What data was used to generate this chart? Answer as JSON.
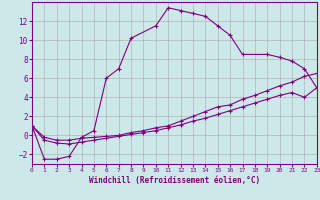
{
  "xlabel": "Windchill (Refroidissement éolien,°C)",
  "bg_color": "#cce8e8",
  "line_color": "#800080",
  "grid_color": "#aaaaaa",
  "ylim": [
    -3,
    14
  ],
  "xlim": [
    0,
    23
  ],
  "yticks": [
    -2,
    0,
    2,
    4,
    6,
    8,
    10,
    12
  ],
  "xticks": [
    0,
    1,
    2,
    3,
    4,
    5,
    6,
    7,
    8,
    9,
    10,
    11,
    12,
    13,
    14,
    15,
    16,
    17,
    18,
    19,
    20,
    21,
    22,
    23
  ],
  "line1_x": [
    0,
    1,
    2,
    3,
    4,
    5,
    6,
    7,
    8,
    10,
    11,
    12,
    13,
    14,
    15,
    16,
    17,
    19,
    20,
    21,
    22,
    23
  ],
  "line1_y": [
    1,
    -2.5,
    -2.5,
    -2.2,
    -0.2,
    0.5,
    6.0,
    7.0,
    10.2,
    11.5,
    13.4,
    13.1,
    12.8,
    12.5,
    11.5,
    10.5,
    8.5,
    8.5,
    8.2,
    7.8,
    7.0,
    5.0
  ],
  "line2_x": [
    0,
    1,
    2,
    3,
    4,
    5,
    6,
    7,
    8,
    9,
    10,
    11,
    12,
    13,
    14,
    15,
    16,
    17,
    18,
    19,
    20,
    21,
    22,
    23
  ],
  "line2_y": [
    1,
    -0.2,
    -0.5,
    -0.5,
    -0.3,
    -0.2,
    -0.1,
    0.0,
    0.3,
    0.5,
    0.8,
    1.0,
    1.5,
    2.0,
    2.5,
    3.0,
    3.2,
    3.8,
    4.2,
    4.7,
    5.2,
    5.6,
    6.2,
    6.5
  ],
  "line3_x": [
    0,
    1,
    2,
    3,
    4,
    5,
    6,
    7,
    8,
    9,
    10,
    11,
    12,
    13,
    14,
    15,
    16,
    17,
    18,
    19,
    20,
    21,
    22,
    23
  ],
  "line3_y": [
    1,
    -0.5,
    -0.8,
    -0.9,
    -0.7,
    -0.5,
    -0.3,
    -0.1,
    0.1,
    0.3,
    0.5,
    0.8,
    1.1,
    1.5,
    1.8,
    2.2,
    2.6,
    3.0,
    3.4,
    3.8,
    4.2,
    4.5,
    4.0,
    5.0
  ]
}
